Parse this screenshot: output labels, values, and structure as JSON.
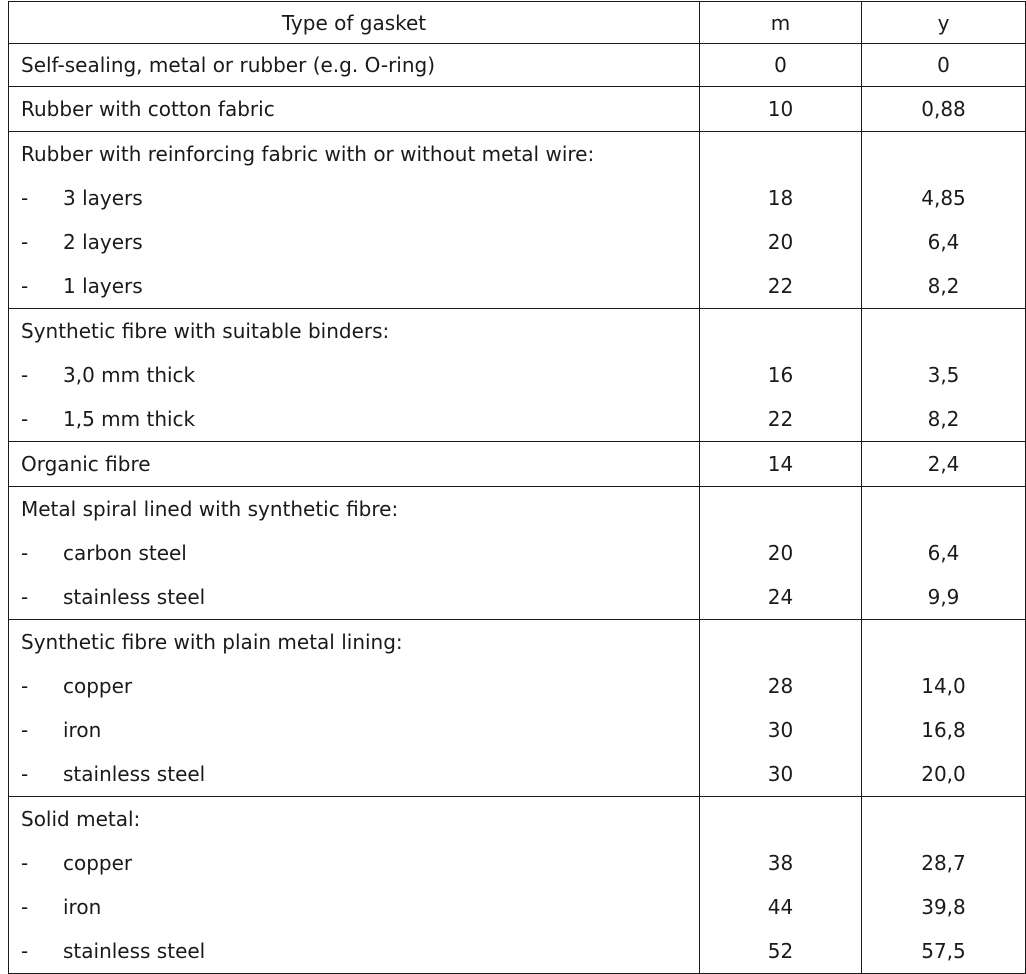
{
  "table": {
    "headers": {
      "type": "Type of gasket",
      "m": "m",
      "y": "y"
    },
    "rows": [
      {
        "type": "Self-sealing, metal or rubber (e.g. O-ring)",
        "m": "0",
        "y": "0",
        "group_start": true,
        "sub": false
      },
      {
        "type": "Rubber with cotton fabric",
        "m": "10",
        "y": "0,88",
        "group_start": true,
        "sub": false
      },
      {
        "type": "Rubber with reinforcing fabric with or without metal wire:",
        "m": "",
        "y": "",
        "group_start": true,
        "sub": false
      },
      {
        "type": "3 layers",
        "m": "18",
        "y": "4,85",
        "group_start": false,
        "sub": true
      },
      {
        "type": "2 layers",
        "m": "20",
        "y": "6,4",
        "group_start": false,
        "sub": true
      },
      {
        "type": "1 layers",
        "m": "22",
        "y": "8,2",
        "group_start": false,
        "sub": true
      },
      {
        "type": "Synthetic fibre with suitable binders:",
        "m": "",
        "y": "",
        "group_start": true,
        "sub": false
      },
      {
        "type": "3,0 mm thick",
        "m": "16",
        "y": "3,5",
        "group_start": false,
        "sub": true
      },
      {
        "type": "1,5 mm thick",
        "m": "22",
        "y": "8,2",
        "group_start": false,
        "sub": true
      },
      {
        "type": "Organic fibre",
        "m": "14",
        "y": "2,4",
        "group_start": true,
        "sub": false
      },
      {
        "type": "Metal spiral lined with synthetic fibre:",
        "m": "",
        "y": "",
        "group_start": true,
        "sub": false
      },
      {
        "type": "carbon steel",
        "m": "20",
        "y": "6,4",
        "group_start": false,
        "sub": true
      },
      {
        "type": "stainless steel",
        "m": "24",
        "y": "9,9",
        "group_start": false,
        "sub": true
      },
      {
        "type": "Synthetic fibre with plain metal lining:",
        "m": "",
        "y": "",
        "group_start": true,
        "sub": false
      },
      {
        "type": "copper",
        "m": "28",
        "y": "14,0",
        "group_start": false,
        "sub": true
      },
      {
        "type": "iron",
        "m": "30",
        "y": "16,8",
        "group_start": false,
        "sub": true
      },
      {
        "type": "stainless steel",
        "m": "30",
        "y": "20,0",
        "group_start": false,
        "sub": true
      },
      {
        "type": "Solid metal:",
        "m": "",
        "y": "",
        "group_start": true,
        "sub": false
      },
      {
        "type": "copper",
        "m": "38",
        "y": "28,7",
        "group_start": false,
        "sub": true
      },
      {
        "type": "iron",
        "m": "44",
        "y": "39,8",
        "group_start": false,
        "sub": true
      },
      {
        "type": "stainless steel",
        "m": "52",
        "y": "57,5",
        "group_start": false,
        "sub": true
      }
    ],
    "sub_marker": "-"
  }
}
